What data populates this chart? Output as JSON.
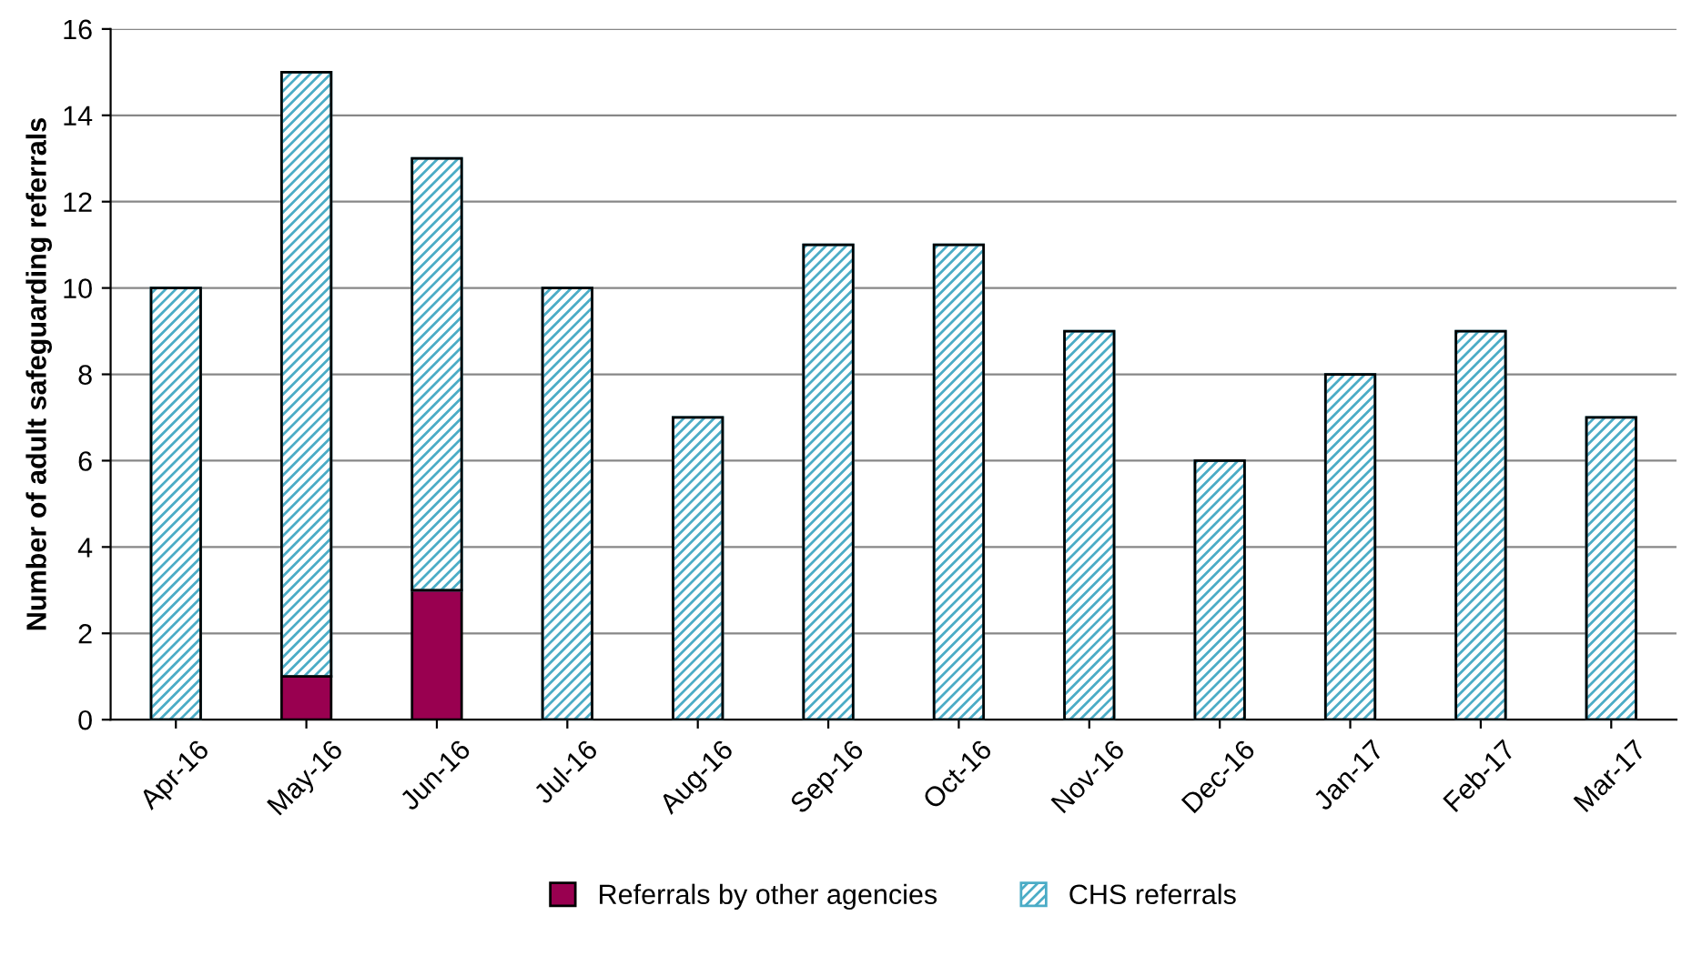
{
  "chart_data": {
    "type": "bar",
    "stacked": true,
    "ylabel": "Number of adult safeguarding referrals",
    "categories": [
      "Apr-16",
      "May-16",
      "Jun-16",
      "Jul-16",
      "Aug-16",
      "Sep-16",
      "Oct-16",
      "Nov-16",
      "Dec-16",
      "Jan-17",
      "Feb-17",
      "Mar-17"
    ],
    "series": [
      {
        "name": "Referrals by other agencies",
        "color": "#990050",
        "values": [
          0,
          1,
          3,
          0,
          0,
          0,
          0,
          0,
          0,
          0,
          0,
          0
        ]
      },
      {
        "name": "CHS referrals",
        "color": "#4bacc6",
        "values": [
          10,
          14,
          10,
          10,
          7,
          11,
          11,
          9,
          6,
          8,
          9,
          7
        ]
      }
    ],
    "ylim": [
      0,
      16
    ],
    "yticks": [
      0,
      2,
      4,
      6,
      8,
      10,
      12,
      14,
      16
    ],
    "grid": "y",
    "legend": "bottom"
  }
}
